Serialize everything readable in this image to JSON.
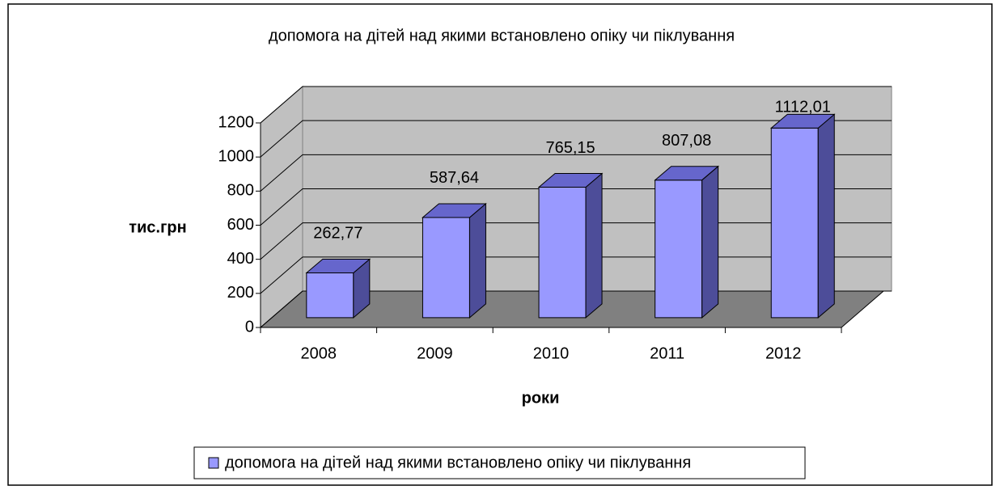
{
  "chart_data": {
    "type": "bar3d",
    "title": "допомога на дітей над якими встановлено опіку чи піклування",
    "x_label": "роки",
    "y_label": "тис.грн",
    "categories": [
      "2008",
      "2009",
      "2010",
      "2011",
      "2012"
    ],
    "series": [
      {
        "name": "допомога на дітей над якими встановлено опіку чи піклування",
        "color": "#9999ff",
        "values": [
          262.77,
          587.64,
          765.15,
          807.08,
          1112.01
        ],
        "value_labels": [
          "262,77",
          "587,64",
          "765,15",
          "807,08",
          "1112,01"
        ]
      }
    ],
    "ylim": [
      0,
      1200
    ],
    "yticks": [
      0,
      200,
      400,
      600,
      800,
      1000,
      1200
    ],
    "grid": true,
    "legend": "bottom"
  }
}
